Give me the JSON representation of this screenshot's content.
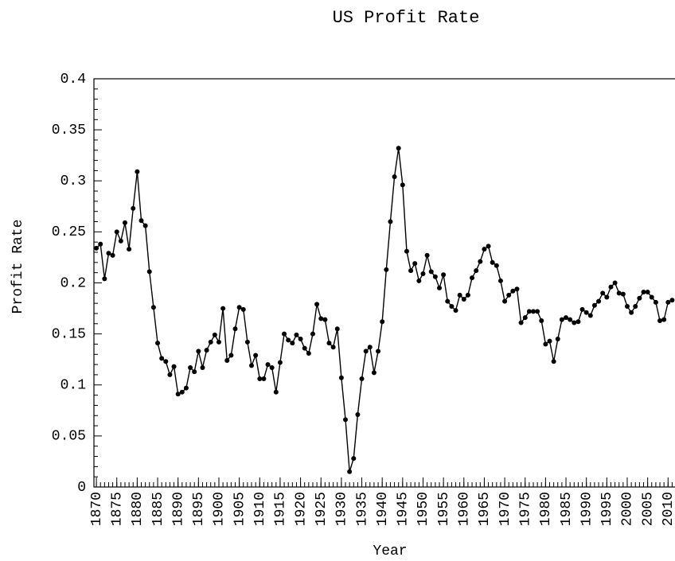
{
  "chart_data": {
    "type": "line",
    "title": "US Profit Rate",
    "xlabel": "Year",
    "ylabel": "Profit Rate",
    "color": "#000000",
    "marker": true,
    "x": [
      1870,
      1871,
      1872,
      1873,
      1874,
      1875,
      1876,
      1877,
      1878,
      1879,
      1880,
      1881,
      1882,
      1883,
      1884,
      1885,
      1886,
      1887,
      1888,
      1889,
      1890,
      1891,
      1892,
      1893,
      1894,
      1895,
      1896,
      1897,
      1898,
      1899,
      1900,
      1901,
      1902,
      1903,
      1904,
      1905,
      1906,
      1907,
      1908,
      1909,
      1910,
      1911,
      1912,
      1913,
      1914,
      1915,
      1916,
      1917,
      1918,
      1919,
      1920,
      1921,
      1922,
      1923,
      1924,
      1925,
      1926,
      1927,
      1928,
      1929,
      1930,
      1931,
      1932,
      1933,
      1934,
      1935,
      1936,
      1937,
      1938,
      1939,
      1940,
      1941,
      1942,
      1943,
      1944,
      1945,
      1946,
      1947,
      1948,
      1949,
      1950,
      1951,
      1952,
      1953,
      1954,
      1955,
      1956,
      1957,
      1958,
      1959,
      1960,
      1961,
      1962,
      1963,
      1964,
      1965,
      1966,
      1967,
      1968,
      1969,
      1970,
      1971,
      1972,
      1973,
      1974,
      1975,
      1976,
      1977,
      1978,
      1979,
      1980,
      1981,
      1982,
      1983,
      1984,
      1985,
      1986,
      1987,
      1988,
      1989,
      1990,
      1991,
      1992,
      1993,
      1994,
      1995,
      1996,
      1997,
      1998,
      1999,
      2000,
      2001,
      2002,
      2003,
      2004,
      2005,
      2006,
      2007,
      2008,
      2009,
      2010,
      2011
    ],
    "series": [
      {
        "name": "Profit Rate",
        "color": "#000000",
        "values": [
          0.234,
          0.238,
          0.204,
          0.229,
          0.227,
          0.25,
          0.241,
          0.259,
          0.233,
          0.273,
          0.309,
          0.261,
          0.256,
          0.211,
          0.176,
          0.141,
          0.126,
          0.123,
          0.11,
          0.118,
          0.091,
          0.093,
          0.097,
          0.117,
          0.113,
          0.133,
          0.117,
          0.134,
          0.142,
          0.149,
          0.142,
          0.175,
          0.124,
          0.129,
          0.155,
          0.176,
          0.174,
          0.142,
          0.119,
          0.129,
          0.106,
          0.106,
          0.12,
          0.117,
          0.093,
          0.122,
          0.15,
          0.144,
          0.141,
          0.149,
          0.145,
          0.136,
          0.131,
          0.15,
          0.179,
          0.165,
          0.164,
          0.141,
          0.137,
          0.155,
          0.107,
          0.066,
          0.015,
          0.028,
          0.071,
          0.106,
          0.133,
          0.137,
          0.112,
          0.133,
          0.162,
          0.213,
          0.26,
          0.304,
          0.332,
          0.296,
          0.231,
          0.212,
          0.219,
          0.202,
          0.209,
          0.227,
          0.211,
          0.206,
          0.195,
          0.208,
          0.182,
          0.177,
          0.173,
          0.188,
          0.184,
          0.188,
          0.205,
          0.212,
          0.221,
          0.233,
          0.236,
          0.22,
          0.217,
          0.202,
          0.182,
          0.188,
          0.192,
          0.194,
          0.161,
          0.166,
          0.172,
          0.172,
          0.172,
          0.163,
          0.14,
          0.143,
          0.123,
          0.145,
          0.164,
          0.166,
          0.164,
          0.161,
          0.162,
          0.174,
          0.171,
          0.168,
          0.178,
          0.182,
          0.19,
          0.186,
          0.196,
          0.2,
          0.19,
          0.189,
          0.177,
          0.171,
          0.177,
          0.185,
          0.191,
          0.191,
          0.186,
          0.181,
          0.163,
          0.164,
          0.181,
          0.183
        ]
      }
    ],
    "xlim": [
      1869.4,
      2016.6
    ],
    "ylim": [
      0,
      0.4
    ],
    "xticks": [
      1870,
      1875,
      1880,
      1885,
      1890,
      1895,
      1900,
      1905,
      1910,
      1915,
      1920,
      1925,
      1930,
      1935,
      1940,
      1945,
      1950,
      1955,
      1960,
      1965,
      1970,
      1975,
      1980,
      1985,
      1990,
      1995,
      2000,
      2005,
      2010
    ],
    "yticks": [
      0,
      0.05,
      0.1,
      0.15,
      0.2,
      0.25,
      0.3,
      0.35,
      0.4
    ],
    "yminorticks": [
      0.01,
      0.02,
      0.03,
      0.04,
      0.06,
      0.07,
      0.08,
      0.09,
      0.11,
      0.12,
      0.13,
      0.14,
      0.16,
      0.17,
      0.18,
      0.19,
      0.21,
      0.22,
      0.23,
      0.24,
      0.26,
      0.27,
      0.28,
      0.29,
      0.31,
      0.32,
      0.33,
      0.34,
      0.36,
      0.37,
      0.38,
      0.39
    ]
  }
}
